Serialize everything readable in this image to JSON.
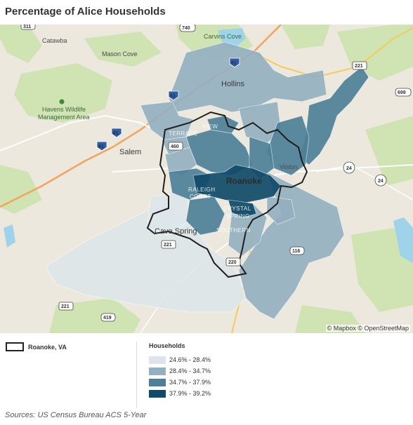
{
  "title": "Percentage of Alice Households",
  "map": {
    "attribution": "© Mapbox © OpenStreetMap",
    "places": {
      "catawba": "Catawba",
      "mason_cove": "Mason Cove",
      "carvins_cove": "Carvins Cove",
      "hollins": "Hollins",
      "havens_1": "Havens Wildlife",
      "havens_2": "Management Area",
      "salem": "Salem",
      "roanoke": "Roanoke",
      "vinton": "Vinton",
      "cave_spring": "Cave Spring",
      "raleigh_1": "RALEIGH",
      "raleigh_2": "COURT",
      "view_1": "VIEW",
      "view_2": "TERRACE",
      "crystal_1": "CRYSTAL",
      "crystal_2": "SPRING",
      "southern": "SOUTHERN"
    },
    "shields": {
      "i81_a": "81",
      "i81_b": "81",
      "i81_c": "81",
      "i581": "81",
      "r311": "311",
      "r740": "740",
      "r221": "221",
      "r221_b": "221",
      "r221_c": "221",
      "r699": "699",
      "r24": "24",
      "r24_b": "24",
      "r116": "116",
      "r220": "220",
      "r460": "460",
      "r419": "419"
    }
  },
  "legend": {
    "boundary_label": "Roanoke, VA",
    "title": "Households",
    "items": [
      {
        "label": "24.6% - 28.4%",
        "color": "#dde5ea"
      },
      {
        "label": "28.4% - 34.7%",
        "color": "#93afc0"
      },
      {
        "label": "34.7% - 37.9%",
        "color": "#4d7f97"
      },
      {
        "label": "37.9% - 39.2%",
        "color": "#0f4a67"
      }
    ]
  },
  "source": "Sources: US Census Bureau ACS 5-Year"
}
